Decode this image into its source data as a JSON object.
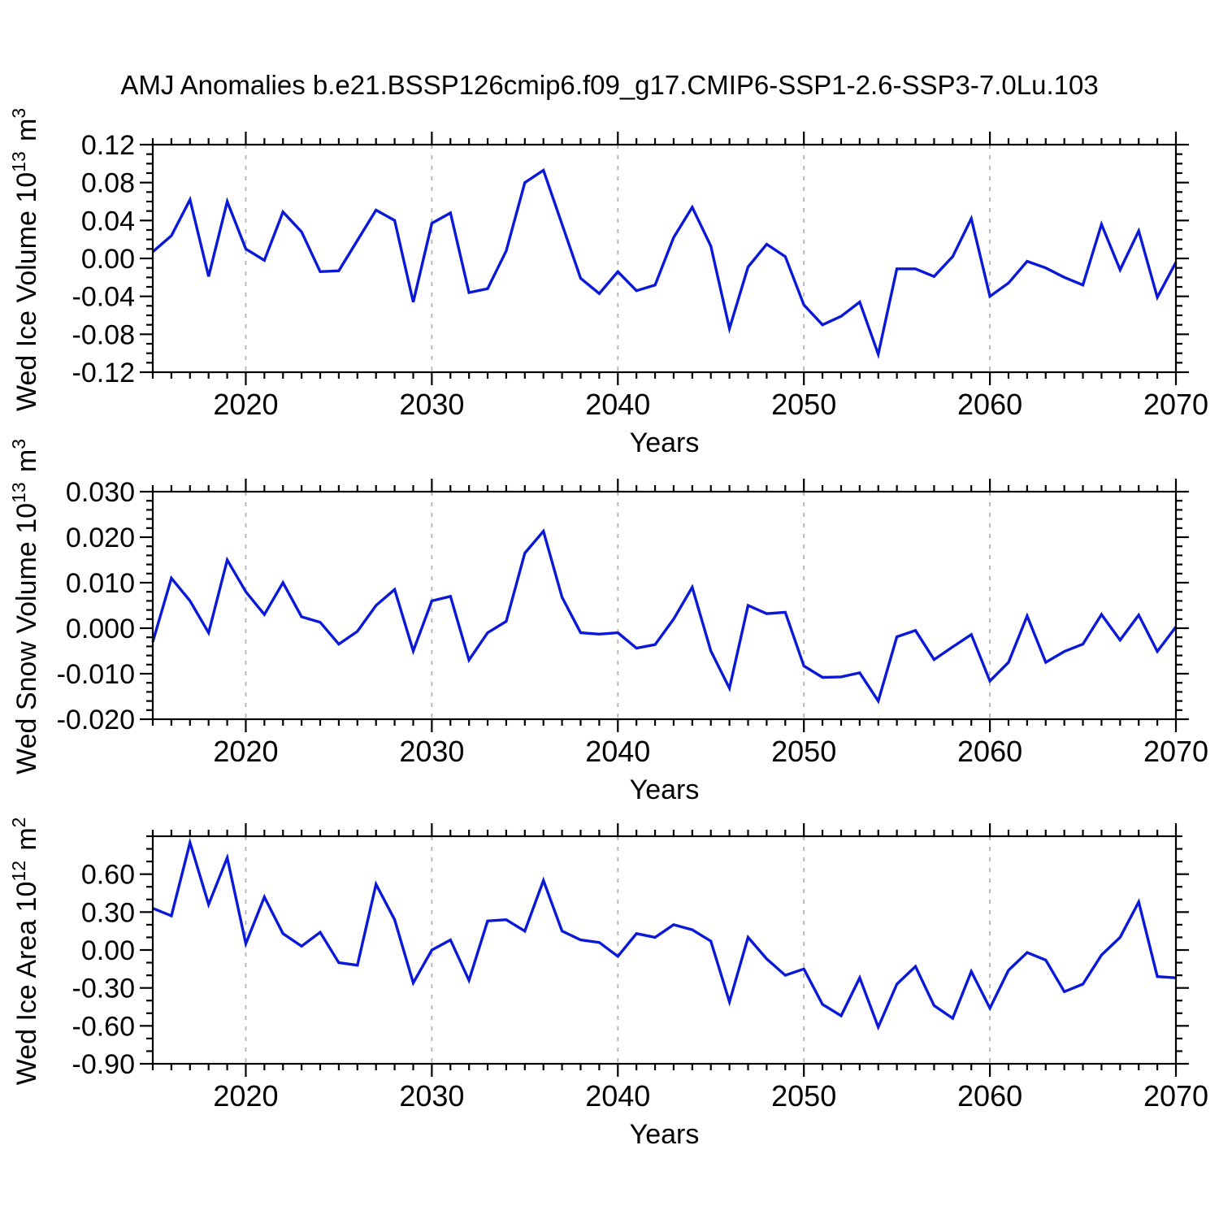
{
  "title": "AMJ Anomalies b.e21.BSSP126cmip6.f09_g17.CMIP6-SSP1-2.6-SSP3-7.0Lu.103",
  "colors": {
    "line": "#0a18d8",
    "grid": "#b3b3b3",
    "axis": "#000000"
  },
  "chart_data": [
    {
      "type": "line",
      "name": "wed-ice-volume",
      "ylabel_segments": [
        {
          "t": "Wed Ice Volume 10"
        },
        {
          "t": "13",
          "sup": true
        },
        {
          "t": " m"
        },
        {
          "t": "3",
          "sup": true
        }
      ],
      "xlabel": "Years",
      "x_start": 2015,
      "x_end": 2070,
      "x_step": 1,
      "xtick_major": [
        2020,
        2030,
        2040,
        2050,
        2060,
        2070
      ],
      "xtick_labels": [
        "2020",
        "2030",
        "2040",
        "2050",
        "2060",
        "2070"
      ],
      "grid_x": [
        2020,
        2030,
        2040,
        2050,
        2060
      ],
      "ylim": [
        -0.12,
        0.12
      ],
      "ytick_values": [
        0.12,
        0.08,
        0.04,
        0.0,
        -0.04,
        -0.08,
        -0.12
      ],
      "ytick_labels": [
        "0.12",
        "0.08",
        "0.04",
        "0.00",
        "-0.04",
        "-0.08",
        "-0.12"
      ],
      "yminor_step": 0.01,
      "values": [
        0.007,
        0.024,
        0.062,
        -0.019,
        0.06,
        0.01,
        -0.002,
        0.049,
        0.028,
        -0.014,
        -0.013,
        0.019,
        0.051,
        0.04,
        -0.046,
        0.037,
        0.048,
        -0.036,
        -0.032,
        0.008,
        0.08,
        0.093,
        0.036,
        -0.021,
        -0.037,
        -0.014,
        -0.034,
        -0.028,
        0.022,
        0.054,
        0.013,
        -0.074,
        -0.009,
        0.015,
        0.002,
        -0.049,
        -0.07,
        -0.061,
        -0.046,
        -0.101,
        -0.011,
        -0.011,
        -0.019,
        0.002,
        0.042,
        -0.04,
        -0.026,
        -0.003,
        -0.01,
        -0.02,
        -0.028,
        0.036,
        -0.012,
        0.029,
        -0.041,
        -0.004
      ]
    },
    {
      "type": "line",
      "name": "wed-snow-volume",
      "ylabel_segments": [
        {
          "t": "Wed Snow Volume 10"
        },
        {
          "t": "13",
          "sup": true
        },
        {
          "t": " m"
        },
        {
          "t": "3",
          "sup": true
        }
      ],
      "xlabel": "Years",
      "x_start": 2015,
      "x_end": 2070,
      "x_step": 1,
      "xtick_major": [
        2020,
        2030,
        2040,
        2050,
        2060,
        2070
      ],
      "xtick_labels": [
        "2020",
        "2030",
        "2040",
        "2050",
        "2060",
        "2070"
      ],
      "grid_x": [
        2020,
        2030,
        2040,
        2050,
        2060
      ],
      "ylim": [
        -0.02,
        0.03
      ],
      "ytick_values": [
        0.03,
        0.02,
        0.01,
        0.0,
        -0.01,
        -0.02
      ],
      "ytick_labels": [
        "0.030",
        "0.020",
        "0.010",
        "0.000",
        "-0.010",
        "-0.020"
      ],
      "yminor_step": 0.002,
      "values": [
        -0.003,
        0.011,
        0.006,
        -0.001,
        0.015,
        0.008,
        0.003,
        0.01,
        0.0025,
        0.0013,
        -0.0035,
        -0.0007,
        0.005,
        0.0085,
        -0.005,
        0.006,
        0.007,
        -0.007,
        -0.001,
        0.0015,
        0.0165,
        0.0213,
        0.0068,
        -0.001,
        -0.0013,
        -0.001,
        -0.0044,
        -0.0036,
        0.002,
        0.009,
        -0.005,
        -0.0132,
        0.005,
        0.0032,
        0.0035,
        -0.0083,
        -0.0108,
        -0.0107,
        -0.0098,
        -0.016,
        -0.0019,
        -0.0005,
        -0.0069,
        -0.0041,
        -0.0014,
        -0.0116,
        -0.0075,
        0.0027,
        -0.0075,
        -0.0051,
        -0.0035,
        0.003,
        -0.0026,
        0.0029,
        -0.0051,
        0.0003
      ]
    },
    {
      "type": "line",
      "name": "wed-ice-area",
      "ylabel_segments": [
        {
          "t": "Wed Ice Area 10"
        },
        {
          "t": "12",
          "sup": true
        },
        {
          "t": " m"
        },
        {
          "t": "2",
          "sup": true
        }
      ],
      "xlabel": "Years",
      "x_start": 2015,
      "x_end": 2070,
      "x_step": 1,
      "xtick_major": [
        2020,
        2030,
        2040,
        2050,
        2060,
        2070
      ],
      "xtick_labels": [
        "2020",
        "2030",
        "2040",
        "2050",
        "2060",
        "2070"
      ],
      "grid_x": [
        2020,
        2030,
        2040,
        2050,
        2060
      ],
      "ylim": [
        -0.9,
        0.9
      ],
      "ytick_values": [
        0.6,
        0.3,
        0.0,
        -0.3,
        -0.6,
        -0.9
      ],
      "ytick_labels": [
        "0.60",
        "0.30",
        "0.00",
        "-0.30",
        "-0.60",
        "-0.90"
      ],
      "yminor_step": 0.1,
      "values": [
        0.33,
        0.27,
        0.85,
        0.36,
        0.73,
        0.05,
        0.42,
        0.13,
        0.03,
        0.14,
        -0.1,
        -0.12,
        0.52,
        0.24,
        -0.26,
        0.0,
        0.08,
        -0.24,
        0.23,
        0.24,
        0.15,
        0.55,
        0.15,
        0.08,
        0.06,
        -0.05,
        0.13,
        0.1,
        0.2,
        0.16,
        0.07,
        -0.41,
        0.1,
        -0.07,
        -0.2,
        -0.15,
        -0.43,
        -0.52,
        -0.22,
        -0.61,
        -0.27,
        -0.13,
        -0.44,
        -0.54,
        -0.17,
        -0.46,
        -0.16,
        -0.02,
        -0.08,
        -0.33,
        -0.27,
        -0.04,
        0.1,
        0.38,
        -0.21,
        -0.22
      ]
    }
  ]
}
